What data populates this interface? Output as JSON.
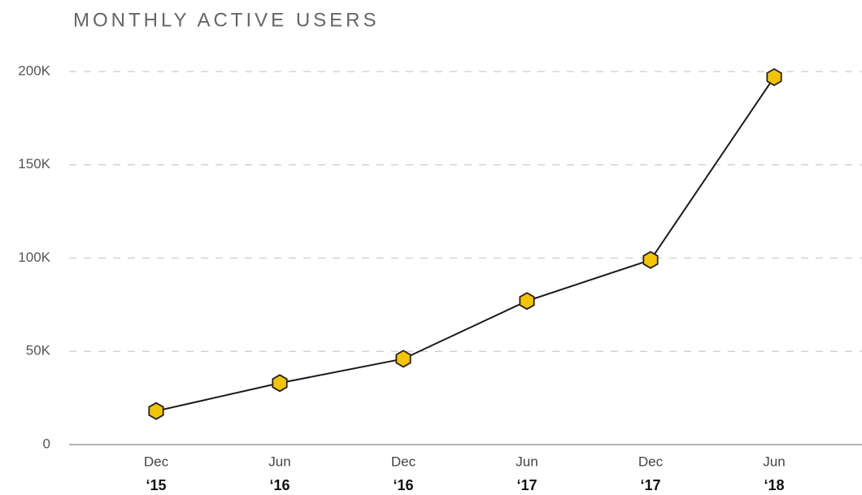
{
  "chart_data": {
    "type": "line",
    "title": "MONTHLY ACTIVE USERS",
    "categories": [
      [
        "Dec",
        "‘15"
      ],
      [
        "Jun",
        "‘16"
      ],
      [
        "Dec",
        "‘16"
      ],
      [
        "Jun",
        "‘17"
      ],
      [
        "Dec",
        "‘17"
      ],
      [
        "Jun",
        "‘18"
      ]
    ],
    "series": [
      {
        "color": "#f5c400",
        "line_color": "#1a1a1a",
        "values": [
          18000,
          33000,
          46000,
          77000,
          99000,
          197000
        ]
      }
    ],
    "ylim": [
      0,
      200000
    ],
    "yticks": [
      0,
      {
        "value": 50000,
        "label": "50K"
      },
      {
        "value": 100000,
        "label": "100K"
      },
      {
        "value": 150000,
        "label": "150K"
      },
      {
        "value": 200000,
        "label": "200K"
      }
    ],
    "grid": true
  }
}
